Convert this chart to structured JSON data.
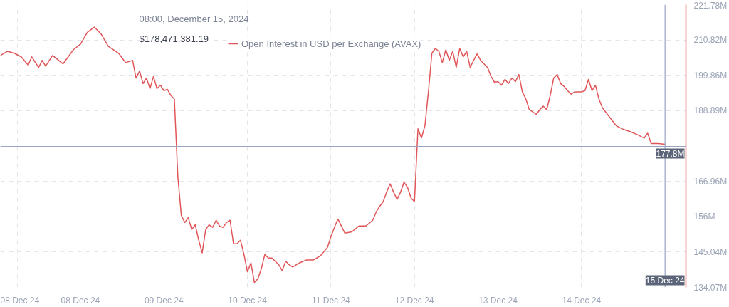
{
  "chart_data": {
    "type": "line",
    "title": "08:00, December 15, 2024",
    "x": [
      "2024-12-07T01:00",
      "2024-12-07T03:00",
      "2024-12-07T05:00",
      "2024-12-07T07:00",
      "2024-12-07T09:00",
      "2024-12-07T10:00",
      "2024-12-07T12:00",
      "2024-12-07T13:00",
      "2024-12-07T14:00",
      "2024-12-07T16:00",
      "2024-12-07T19:00",
      "2024-12-07T22:00",
      "2024-12-08T00:00",
      "2024-12-08T02:00",
      "2024-12-08T04:00",
      "2024-12-08T06:00",
      "2024-12-08T08:00",
      "2024-12-08T11:00",
      "2024-12-08T12:00",
      "2024-12-08T13:00",
      "2024-12-08T15:00",
      "2024-12-08T16:00",
      "2024-12-08T17:00",
      "2024-12-08T18:00",
      "2024-12-08T19:00",
      "2024-12-08T20:00",
      "2024-12-08T21:00",
      "2024-12-08T22:00",
      "2024-12-08T23:00",
      "2024-12-09T00:00",
      "2024-12-09T01:00",
      "2024-12-09T02:00",
      "2024-12-09T03:00",
      "2024-12-09T04:00",
      "2024-12-09T05:00",
      "2024-12-09T06:00",
      "2024-12-09T07:00",
      "2024-12-09T08:00",
      "2024-12-09T09:00",
      "2024-12-09T10:00",
      "2024-12-09T11:00",
      "2024-12-09T12:00",
      "2024-12-09T13:00",
      "2024-12-09T14:00",
      "2024-12-09T15:00",
      "2024-12-09T16:00",
      "2024-12-09T17:00",
      "2024-12-09T18:00",
      "2024-12-09T19:00",
      "2024-12-09T20:00",
      "2024-12-09T21:00",
      "2024-12-09T22:00",
      "2024-12-09T23:00",
      "2024-12-10T00:00",
      "2024-12-10T01:00",
      "2024-12-10T02:00",
      "2024-12-10T03:00",
      "2024-12-10T04:00",
      "2024-12-10T05:00",
      "2024-12-10T06:00",
      "2024-12-10T07:00",
      "2024-12-10T08:00",
      "2024-12-10T09:00",
      "2024-12-10T10:00",
      "2024-12-10T11:00",
      "2024-12-10T12:00",
      "2024-12-10T13:00",
      "2024-12-10T15:00",
      "2024-12-10T17:00",
      "2024-12-10T19:00",
      "2024-12-10T21:00",
      "2024-12-10T22:00",
      "2024-12-10T23:00",
      "2024-12-11T00:00",
      "2024-12-11T01:00",
      "2024-12-11T02:00",
      "2024-12-11T03:00",
      "2024-12-11T04:00",
      "2024-12-11T06:00",
      "2024-12-11T08:00",
      "2024-12-11T10:00",
      "2024-12-11T12:00",
      "2024-12-11T13:00",
      "2024-12-11T14:00",
      "2024-12-11T15:00",
      "2024-12-11T16:00",
      "2024-12-11T17:00",
      "2024-12-11T18:00",
      "2024-12-11T19:00",
      "2024-12-11T20:00",
      "2024-12-11T21:00",
      "2024-12-11T22:00",
      "2024-12-11T23:00",
      "2024-12-12T00:00",
      "2024-12-12T01:00",
      "2024-12-12T02:00",
      "2024-12-12T03:00",
      "2024-12-12T04:00",
      "2024-12-12T05:00",
      "2024-12-12T06:00",
      "2024-12-12T07:00",
      "2024-12-12T08:00",
      "2024-12-12T09:00",
      "2024-12-12T10:00",
      "2024-12-12T11:00",
      "2024-12-12T12:00",
      "2024-12-12T13:00",
      "2024-12-12T14:00",
      "2024-12-12T15:00",
      "2024-12-12T16:00",
      "2024-12-12T17:00",
      "2024-12-12T18:00",
      "2024-12-12T19:00",
      "2024-12-12T20:00",
      "2024-12-12T21:00",
      "2024-12-12T22:00",
      "2024-12-12T23:00",
      "2024-12-13T00:00",
      "2024-12-13T01:00",
      "2024-12-13T02:00",
      "2024-12-13T03:00",
      "2024-12-13T04:00",
      "2024-12-13T05:00",
      "2024-12-13T06:00",
      "2024-12-13T07:00",
      "2024-12-13T08:00",
      "2024-12-13T09:00",
      "2024-12-13T10:00",
      "2024-12-13T11:00",
      "2024-12-13T12:00",
      "2024-12-13T13:00",
      "2024-12-13T14:00",
      "2024-12-13T15:00",
      "2024-12-13T16:00",
      "2024-12-13T17:00",
      "2024-12-13T18:00",
      "2024-12-13T19:00",
      "2024-12-13T20:00",
      "2024-12-13T21:00",
      "2024-12-13T22:00",
      "2024-12-14T00:00",
      "2024-12-14T01:00",
      "2024-12-14T02:00",
      "2024-12-14T03:00",
      "2024-12-14T04:00",
      "2024-12-14T05:00",
      "2024-12-14T06:00",
      "2024-12-14T08:00",
      "2024-12-14T10:00",
      "2024-12-14T12:00",
      "2024-12-14T14:00",
      "2024-12-14T16:00",
      "2024-12-14T18:00",
      "2024-12-14T19:00",
      "2024-12-14T20:00",
      "2024-12-14T22:00",
      "2024-12-15T00:00"
    ],
    "series": [
      {
        "name": "Open Interest in USD per Exchange (AVAX)",
        "color": "#e15759",
        "values": [
          206.0,
          207.3,
          206.7,
          205.6,
          203.0,
          205.6,
          202.3,
          204.5,
          202.7,
          206.0,
          203.4,
          207.8,
          209.5,
          213.2,
          214.8,
          212.6,
          208.9,
          206.7,
          205.2,
          203.8,
          204.5,
          199.0,
          201.2,
          197.3,
          199.0,
          195.7,
          199.5,
          195.7,
          196.8,
          195.1,
          195.5,
          193.6,
          192.5,
          168.4,
          156.4,
          154.2,
          155.7,
          152.0,
          153.5,
          148.7,
          144.8,
          152.0,
          153.5,
          152.7,
          154.9,
          153.1,
          152.7,
          154.2,
          154.9,
          147.6,
          147.6,
          148.7,
          144.3,
          138.9,
          141.7,
          135.6,
          136.7,
          139.9,
          144.3,
          143.2,
          143.2,
          142.2,
          141.1,
          139.3,
          142.2,
          141.1,
          140.4,
          141.7,
          142.6,
          142.6,
          143.9,
          145.2,
          146.5,
          149.8,
          152.7,
          155.3,
          153.1,
          150.9,
          151.3,
          153.1,
          153.1,
          154.9,
          157.5,
          159.2,
          160.7,
          163.6,
          166.2,
          163.6,
          161.4,
          163.6,
          166.7,
          165.1,
          161.8,
          160.7,
          183.3,
          180.4,
          184.2,
          194.7,
          206.7,
          208.2,
          207.3,
          203.8,
          207.8,
          204.5,
          207.3,
          202.3,
          208.2,
          205.6,
          207.3,
          202.3,
          204.5,
          206.5,
          204.5,
          203.4,
          202.3,
          199.5,
          197.7,
          197.9,
          196.8,
          198.6,
          197.3,
          199.0,
          197.9,
          200.1,
          194.7,
          192.5,
          189.2,
          188.5,
          187.7,
          189.2,
          190.3,
          189.2,
          193.6,
          199.0,
          200.1,
          197.3,
          196.4,
          195.1,
          194.0,
          194.7,
          194.7,
          195.1,
          198.6,
          195.1,
          196.8,
          192.5,
          189.8,
          187.0,
          184.2,
          183.1,
          182.4,
          181.5,
          180.4,
          181.9,
          178.7,
          178.7,
          178.5
        ]
      }
    ],
    "annotations": [
      "$178,471,381.19"
    ],
    "xlim": [
      "2024-12-07T01:00",
      "2024-12-15T06:00"
    ],
    "xticks": [
      {
        "value": "2024-12-07T06:00",
        "label": "08 Dec 24"
      },
      {
        "value": "2024-12-08T00:00",
        "label": "08 Dec 24"
      },
      {
        "value": "2024-12-09T00:00",
        "label": "09 Dec 24"
      },
      {
        "value": "2024-12-10T00:00",
        "label": "10 Dec 24"
      },
      {
        "value": "2024-12-11T00:00",
        "label": "11 Dec 24"
      },
      {
        "value": "2024-12-12T00:00",
        "label": "12 Dec 24"
      },
      {
        "value": "2024-12-13T00:00",
        "label": "13 Dec 24"
      },
      {
        "value": "2024-12-14T00:00",
        "label": "14 Dec 24"
      }
    ],
    "ylim": [
      134.07,
      221.78
    ],
    "yticks": [
      {
        "value": 134.07,
        "label": "134.07M"
      },
      {
        "value": 145.04,
        "label": "145.04M"
      },
      {
        "value": 156,
        "label": "156M"
      },
      {
        "value": 166.96,
        "label": "166.96M"
      },
      {
        "value": 188.89,
        "label": "188.89M"
      },
      {
        "value": 199.86,
        "label": "199.86M"
      },
      {
        "value": 210.82,
        "label": "210.82M"
      },
      {
        "value": 221.78,
        "label": "221.78M"
      }
    ],
    "ref_lines": [
      {
        "axis": "y",
        "value": 177.8,
        "label": "177.8M",
        "color": "#9aa3c4"
      },
      {
        "axis": "x",
        "value": "2024-12-15T00:00",
        "label": "15 Dec 24",
        "color": "#9aa3c4"
      }
    ],
    "grid": true,
    "legend": "top left",
    "line_style": "solid",
    "marker": "none"
  }
}
